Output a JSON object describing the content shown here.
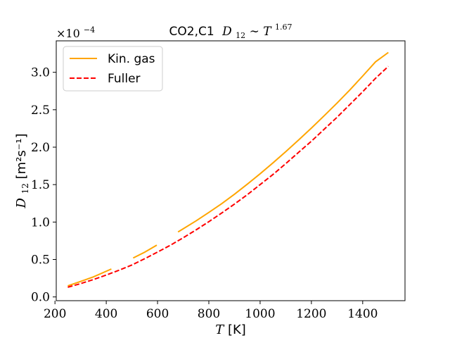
{
  "chart_data": {
    "type": "line",
    "title": "CO2,C1",
    "title_math": "D",
    "title_math_sub": "12",
    "title_math_rel": " ∼ T",
    "title_math_exp": "1.67",
    "xlabel_var": "T",
    "xlabel_unit": " [K]",
    "ylabel_var": "D",
    "ylabel_sub": "12",
    "ylabel_unit": " [m²s⁻¹]",
    "offset_base": "×10",
    "offset_exp": "−4",
    "xlim": [
      205,
      1565
    ],
    "ylim": [
      -0.05,
      3.42
    ],
    "x_ticks": [
      200,
      400,
      600,
      800,
      1000,
      1200,
      1400
    ],
    "x_tick_labels": [
      "200",
      "400",
      "600",
      "800",
      "1000",
      "1200",
      "1400"
    ],
    "y_ticks": [
      0.0,
      0.5,
      1.0,
      1.5,
      2.0,
      2.5,
      3.0
    ],
    "y_tick_labels": [
      "0.0",
      "0.5",
      "1.0",
      "1.5",
      "2.0",
      "2.5",
      "3.0"
    ],
    "grid": false,
    "legend_position": "upper-left",
    "series": [
      {
        "name": "Kin. gas",
        "color": "#ffa500",
        "style": "solid",
        "segments": [
          {
            "x": [
              250,
              300,
              350,
              420
            ],
            "y": [
              0.148,
              0.207,
              0.268,
              0.373
            ]
          },
          {
            "x": [
              505,
              550,
              597
            ],
            "y": [
              0.52,
              0.598,
              0.692
            ]
          },
          {
            "x": [
              680,
              750,
              800,
              850,
              900,
              950,
              1000,
              1050,
              1100,
              1150,
              1200,
              1250,
              1300,
              1350,
              1400,
              1450,
              1500
            ],
            "y": [
              0.868,
              1.015,
              1.128,
              1.245,
              1.372,
              1.505,
              1.645,
              1.79,
              1.94,
              2.095,
              2.255,
              2.42,
              2.59,
              2.765,
              2.95,
              3.14,
              3.265
            ]
          }
        ]
      },
      {
        "name": "Fuller",
        "color": "#ff0000",
        "style": "dashed",
        "segments": [
          {
            "x": [
              250,
              300,
              350,
              400,
              450,
              500,
              550,
              600,
              650,
              700,
              750,
              800,
              850,
              900,
              950,
              1000,
              1050,
              1100,
              1150,
              1200,
              1250,
              1300,
              1350,
              1400,
              1450,
              1500
            ],
            "y": [
              0.13,
              0.178,
              0.232,
              0.292,
              0.357,
              0.427,
              0.51,
              0.6,
              0.69,
              0.79,
              0.895,
              1.005,
              1.12,
              1.24,
              1.365,
              1.5,
              1.635,
              1.78,
              1.93,
              2.08,
              2.24,
              2.4,
              2.57,
              2.74,
              2.92,
              3.08
            ]
          }
        ]
      }
    ]
  }
}
